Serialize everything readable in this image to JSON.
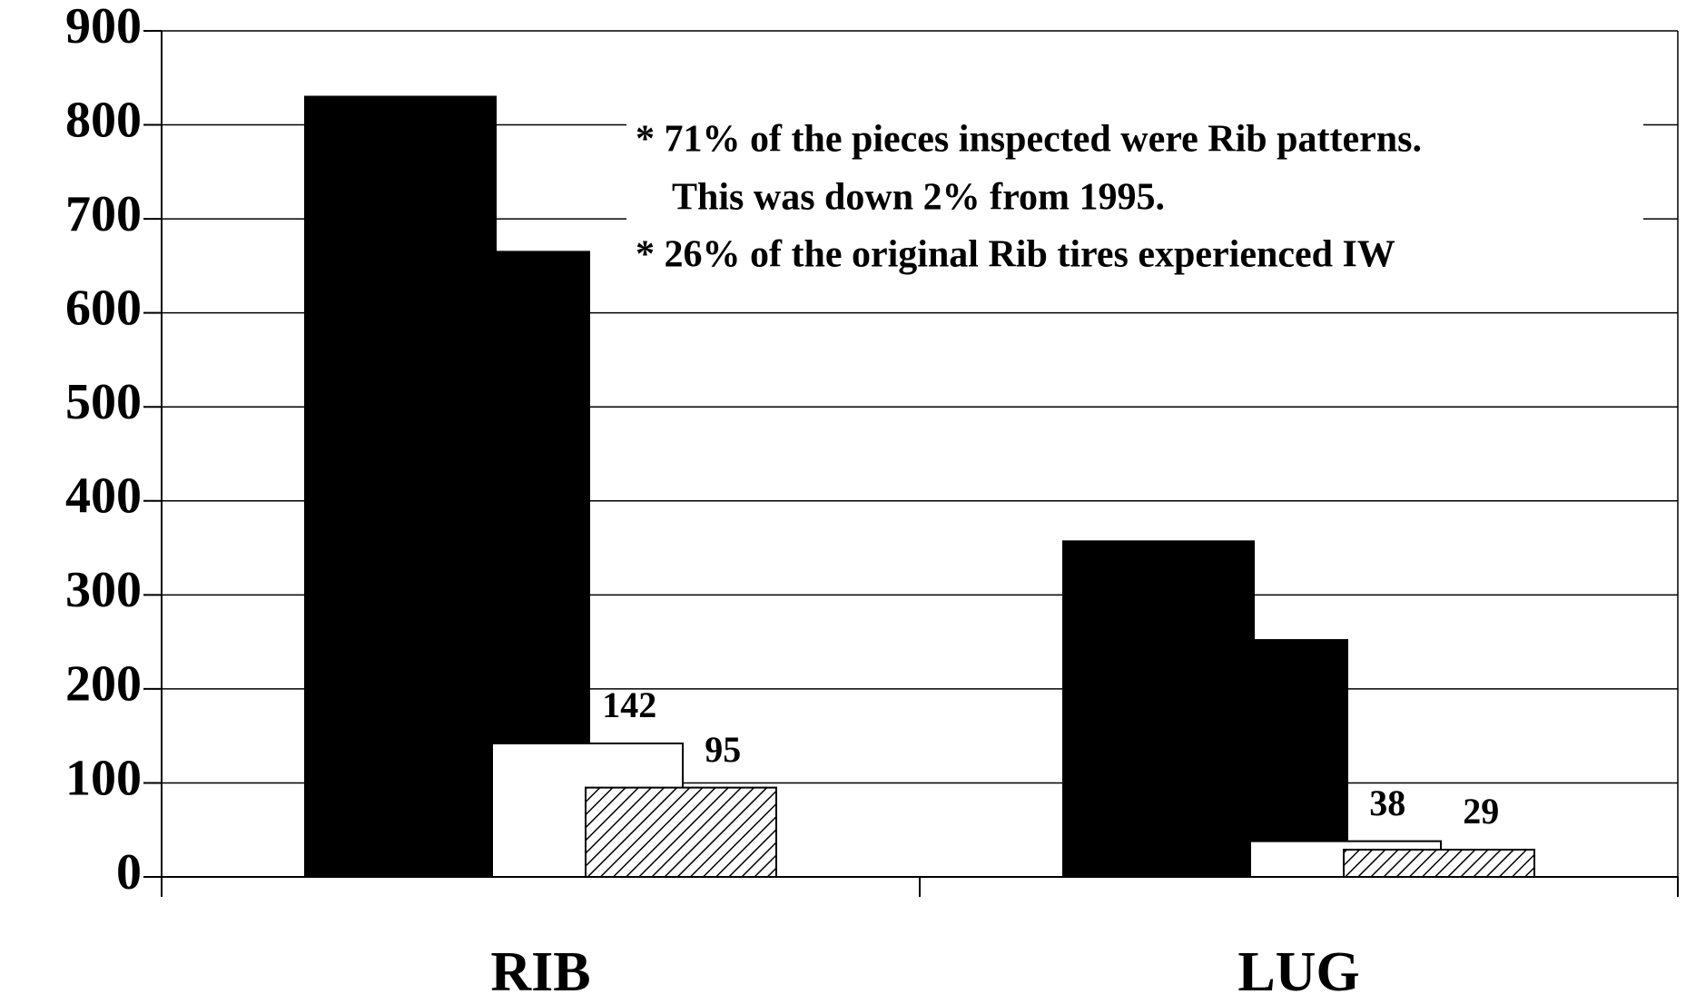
{
  "chart_data": {
    "type": "bar",
    "categories": [
      "RIB",
      "LUG"
    ],
    "series": [
      {
        "color": "#000000",
        "values": [
          830,
          357
        ]
      },
      {
        "color": "#000000",
        "values": [
          665,
          252
        ]
      },
      {
        "color": "#ffffff",
        "values": [
          142,
          38
        ],
        "show_labels": true
      },
      {
        "color": "hatch",
        "values": [
          95,
          29
        ],
        "show_labels": true
      }
    ],
    "ylim": [
      0,
      900
    ],
    "yticks": [
      0,
      100,
      200,
      300,
      400,
      500,
      600,
      700,
      800,
      900
    ],
    "grid": true,
    "annotations": [
      "* 71% of the pieces inspected were Rib patterns.",
      "This was down 2% from 1995.",
      "* 26% of the original Rib tires experienced IW"
    ]
  }
}
